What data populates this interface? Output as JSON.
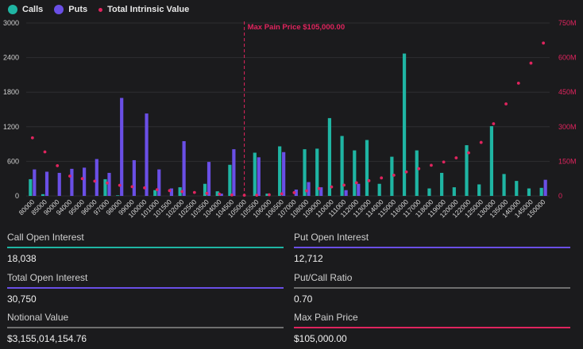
{
  "legend": {
    "calls": "Calls",
    "puts": "Puts",
    "intrinsic": "Total Intrinsic Value"
  },
  "colors": {
    "calls": "#1fb5a3",
    "puts": "#6a4fe6",
    "intrinsic": "#e0245e",
    "neutral": "#6f6f6f",
    "background": "#1b1b1d"
  },
  "chart_data": {
    "type": "bar",
    "categories": [
      "80000",
      "85000",
      "90000",
      "94000",
      "95000",
      "96000",
      "97000",
      "98000",
      "99000",
      "100000",
      "101000",
      "101500",
      "102000",
      "102500",
      "103500",
      "104000",
      "104500",
      "105000",
      "105500",
      "106000",
      "106500",
      "107000",
      "108000",
      "109000",
      "110000",
      "111000",
      "112000",
      "113000",
      "114000",
      "115000",
      "116000",
      "117000",
      "118000",
      "119000",
      "120000",
      "122000",
      "125000",
      "130000",
      "135000",
      "140000",
      "145000",
      "150000"
    ],
    "series": [
      {
        "name": "Calls",
        "axis": "left",
        "values": [
          290,
          30,
          0,
          0,
          0,
          0,
          290,
          10,
          0,
          0,
          100,
          0,
          150,
          0,
          210,
          80,
          540,
          0,
          750,
          40,
          860,
          0,
          810,
          820,
          1350,
          1040,
          790,
          970,
          210,
          680,
          2470,
          790,
          130,
          400,
          150,
          880,
          200,
          1210,
          380,
          260,
          130,
          140
        ]
      },
      {
        "name": "Puts",
        "axis": "left",
        "values": [
          460,
          420,
          400,
          470,
          490,
          640,
          400,
          1700,
          620,
          1430,
          460,
          130,
          950,
          0,
          590,
          40,
          810,
          0,
          670,
          0,
          760,
          110,
          240,
          150,
          0,
          100,
          210,
          0,
          0,
          0,
          0,
          0,
          0,
          0,
          0,
          0,
          0,
          0,
          0,
          0,
          0,
          280
        ]
      },
      {
        "name": "Total Intrinsic Value",
        "axis": "right",
        "type": "scatter",
        "values": [
          252,
          191,
          131,
          86,
          75,
          64,
          56,
          46,
          40,
          35,
          27,
          23,
          19,
          15,
          11,
          8,
          4,
          3,
          3,
          5,
          9,
          14,
          22,
          32,
          39,
          47,
          57,
          66,
          78,
          90,
          104,
          118,
          133,
          147,
          165,
          187,
          232,
          313,
          399,
          489,
          576,
          663
        ]
      }
    ],
    "y_left": {
      "ticks": [
        0,
        600,
        1200,
        1800,
        2400,
        3000
      ],
      "labels": [
        "0",
        "600",
        "1200",
        "1800",
        "2400",
        "3000"
      ],
      "range": [
        0,
        3000
      ]
    },
    "y_right": {
      "ticks": [
        0,
        150,
        300,
        450,
        600,
        750
      ],
      "labels": [
        "0",
        "150M",
        "300M",
        "450M",
        "600M",
        "750M"
      ],
      "range": [
        0,
        750
      ]
    },
    "annotation": {
      "label": "Max Pain Price $105,000.00",
      "category": "105000"
    },
    "grid": true,
    "legend_position": "top-left"
  },
  "stats": {
    "call_oi": {
      "label": "Call Open Interest",
      "value": "18,038"
    },
    "put_oi": {
      "label": "Put Open Interest",
      "value": "12,712"
    },
    "total_oi": {
      "label": "Total Open Interest",
      "value": "30,750"
    },
    "pc_ratio": {
      "label": "Put/Call Ratio",
      "value": "0.70"
    },
    "notional": {
      "label": "Notional Value",
      "value": "$3,155,014,154.76"
    },
    "max_pain": {
      "label": "Max Pain Price",
      "value": "$105,000.00"
    }
  }
}
